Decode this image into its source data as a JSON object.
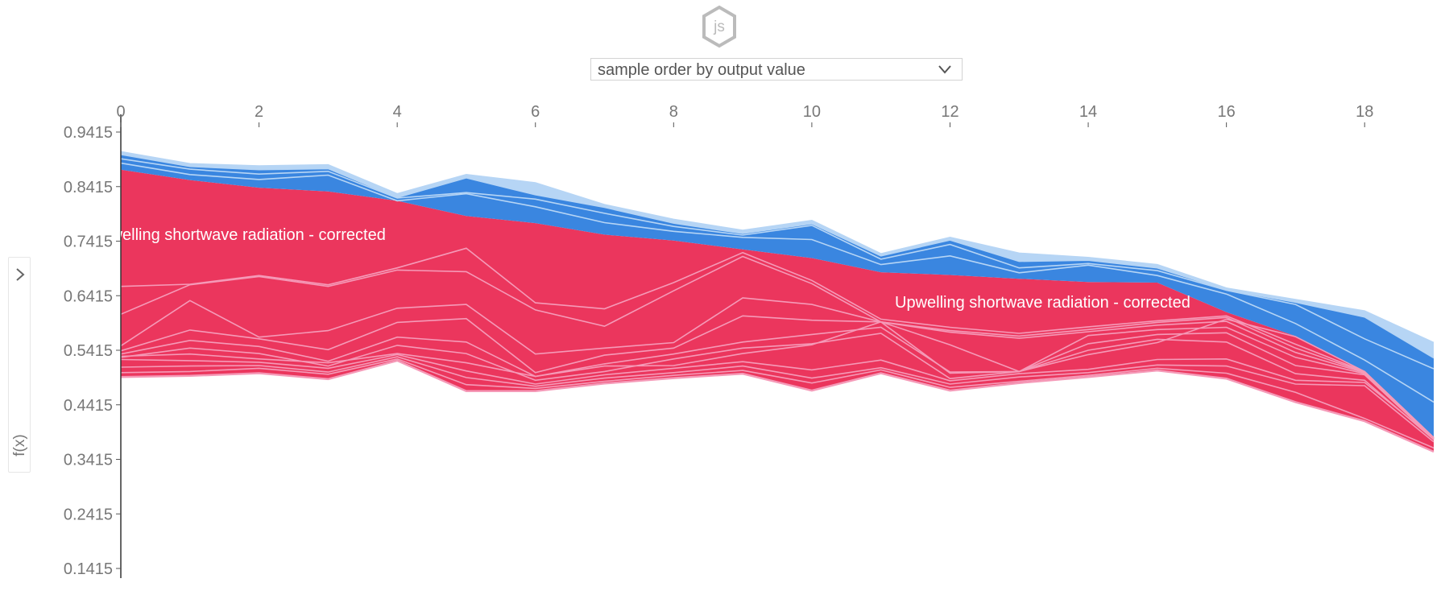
{
  "controls": {
    "order_select": {
      "selected": "sample order by output value"
    },
    "ylabel_toggle": {
      "label": "f(x)",
      "icon": "chevron-right-icon"
    },
    "logo": "js"
  },
  "chart_data": {
    "type": "area",
    "title": "",
    "xlabel": "",
    "ylabel": "f(x)",
    "xlim": [
      0,
      19
    ],
    "ylim": [
      0.1415,
      0.9415
    ],
    "x_ticks": [
      "0",
      "2",
      "4",
      "6",
      "8",
      "10",
      "12",
      "14",
      "16",
      "18"
    ],
    "y_ticks": [
      "0.9415",
      "0.8415",
      "0.7415",
      "0.6415",
      "0.5415",
      "0.4415",
      "0.3415",
      "0.2415",
      "0.1415"
    ],
    "colors": {
      "positive": "#ff0d57",
      "negative": "#1e88e5",
      "positive_band": "#eb365d",
      "negative_band": "#3a86e0",
      "positive_edge": "#f59ab8",
      "negative_edge": "#b6d5f5"
    },
    "x": [
      0,
      1,
      2,
      3,
      4,
      5,
      6,
      7,
      8,
      9,
      10,
      11,
      12,
      13,
      14,
      15,
      16,
      17,
      18,
      19
    ],
    "output_value": [
      0.8725,
      0.8535,
      0.8395,
      0.8325,
      0.8155,
      0.7875,
      0.7745,
      0.7535,
      0.7425,
      0.7265,
      0.7105,
      0.6845,
      0.6795,
      0.6725,
      0.6665,
      0.6655,
      0.6115,
      0.5675,
      0.5025,
      0.3815
    ],
    "series": [
      {
        "name": "Upwelling shortwave radiation - corrected",
        "sign": "positive",
        "lower": [
          0.5305,
          0.5345,
          0.5255,
          0.5185,
          0.5355,
          0.5185,
          0.4935,
          0.5125,
          0.5135,
          0.5355,
          0.5515,
          0.5935,
          0.4995,
          0.5025,
          0.5335,
          0.5555,
          0.5985,
          0.5665,
          0.5025,
          0.3815
        ],
        "upper": [
          0.8725,
          0.8535,
          0.8395,
          0.8325,
          0.8155,
          0.7875,
          0.7745,
          0.7535,
          0.7425,
          0.7265,
          0.7105,
          0.6845,
          0.6795,
          0.6725,
          0.6665,
          0.6655,
          0.6115,
          0.5675,
          0.5025,
          0.3815
        ]
      }
    ],
    "positive_boundaries": [
      [
        0.4925,
        0.4945,
        0.4995,
        0.4885,
        0.5225,
        0.4665,
        0.4665,
        0.4805,
        0.4905,
        0.4985,
        0.4675,
        0.4995,
        0.4675,
        0.4815,
        0.4925,
        0.5045,
        0.4895,
        0.4465,
        0.4115,
        0.3555
      ],
      [
        0.5005,
        0.5025,
        0.5085,
        0.4975,
        0.5255,
        0.4785,
        0.4715,
        0.4845,
        0.4955,
        0.5045,
        0.4815,
        0.5055,
        0.4735,
        0.4845,
        0.4955,
        0.5085,
        0.4995,
        0.4645,
        0.4165,
        0.3625
      ],
      [
        0.5105,
        0.5125,
        0.5135,
        0.5015,
        0.5295,
        0.4915,
        0.4755,
        0.4905,
        0.5005,
        0.5125,
        0.4905,
        0.5095,
        0.4795,
        0.4925,
        0.5005,
        0.5145,
        0.5125,
        0.4795,
        0.4765,
        0.3735
      ],
      [
        0.5245,
        0.5225,
        0.5195,
        0.5085,
        0.5335,
        0.5035,
        0.4795,
        0.4965,
        0.5085,
        0.5205,
        0.5055,
        0.5235,
        0.4855,
        0.4985,
        0.5065,
        0.5245,
        0.5255,
        0.4865,
        0.4825,
        0.3805
      ],
      [
        0.5305,
        0.5345,
        0.5255,
        0.5185,
        0.5355,
        0.5185,
        0.4935,
        0.5125,
        0.5135,
        0.5355,
        0.5515,
        0.5935,
        0.4995,
        0.5025,
        0.5335,
        0.5555,
        0.5985,
        0.5665,
        0.5025,
        0.3815
      ]
    ],
    "positive_detail_boundaries": [
      [
        0.5285,
        0.5455,
        0.5355,
        0.5125,
        0.5505,
        0.5355,
        0.4865,
        0.5025,
        0.5255,
        0.5455,
        0.5535,
        0.5725,
        0.4895,
        0.5025,
        0.5415,
        0.5615,
        0.5565,
        0.4985,
        0.4865,
        0.3775
      ],
      [
        0.5345,
        0.5595,
        0.5485,
        0.5215,
        0.5655,
        0.5565,
        0.4935,
        0.5165,
        0.5345,
        0.5565,
        0.5705,
        0.5835,
        0.5015,
        0.5025,
        0.5535,
        0.5705,
        0.5735,
        0.5135,
        0.4965,
        0.3785
      ],
      [
        0.5405,
        0.5785,
        0.5625,
        0.5425,
        0.5925,
        0.5995,
        0.5005,
        0.5325,
        0.5455,
        0.6045,
        0.5965,
        0.5935,
        0.5515,
        0.5025,
        0.5685,
        0.5795,
        0.5835,
        0.5285,
        0.4985,
        0.3795
      ],
      [
        0.5495,
        0.6325,
        0.5655,
        0.5775,
        0.6185,
        0.6255,
        0.5345,
        0.5455,
        0.5555,
        0.6375,
        0.6255,
        0.5935,
        0.5745,
        0.5635,
        0.5755,
        0.5875,
        0.5945,
        0.5375,
        0.5005,
        0.3805
      ],
      [
        0.6075,
        0.6615,
        0.6765,
        0.6585,
        0.6885,
        0.6855,
        0.6155,
        0.5855,
        0.6505,
        0.7135,
        0.6635,
        0.5935,
        0.5775,
        0.5675,
        0.5795,
        0.5925,
        0.6015,
        0.5455,
        0.5015,
        0.3815
      ],
      [
        0.6585,
        0.6625,
        0.6785,
        0.6615,
        0.6925,
        0.7285,
        0.6285,
        0.6175,
        0.6655,
        0.7205,
        0.6695,
        0.5985,
        0.5835,
        0.5725,
        0.5845,
        0.5955,
        0.6045,
        0.5525,
        0.5025,
        0.3815
      ]
    ],
    "negative_boundaries": [
      [
        0.8725,
        0.8535,
        0.8395,
        0.8325,
        0.8155,
        0.7875,
        0.7745,
        0.7535,
        0.7425,
        0.7265,
        0.7105,
        0.6845,
        0.6795,
        0.6725,
        0.6665,
        0.6655,
        0.6115,
        0.5675,
        0.5025,
        0.3815
      ],
      [
        0.8845,
        0.8635,
        0.8545,
        0.8625,
        0.8155,
        0.8285,
        0.8045,
        0.7755,
        0.7595,
        0.7485,
        0.7445,
        0.6985,
        0.7145,
        0.6835,
        0.6975,
        0.6785,
        0.6445,
        0.5905,
        0.5235,
        0.4465
      ],
      [
        0.8925,
        0.8735,
        0.8645,
        0.8695,
        0.8205,
        0.8305,
        0.8185,
        0.7925,
        0.7685,
        0.7525,
        0.7705,
        0.7085,
        0.7355,
        0.6925,
        0.7005,
        0.6875,
        0.6515,
        0.6255,
        0.5625,
        0.5075
      ],
      [
        0.9005,
        0.8785,
        0.8725,
        0.8745,
        0.8215,
        0.8575,
        0.8265,
        0.8035,
        0.7745,
        0.7555,
        0.7735,
        0.7145,
        0.7435,
        0.7045,
        0.7065,
        0.6925,
        0.6525,
        0.6295,
        0.6025,
        0.5275
      ],
      [
        0.9055,
        0.8835,
        0.8795,
        0.8815,
        0.8285,
        0.8635,
        0.8485,
        0.8085,
        0.7815,
        0.7615,
        0.7795,
        0.7185,
        0.7485,
        0.7195,
        0.7115,
        0.6985,
        0.6555,
        0.6345,
        0.6135,
        0.5555
      ]
    ]
  }
}
